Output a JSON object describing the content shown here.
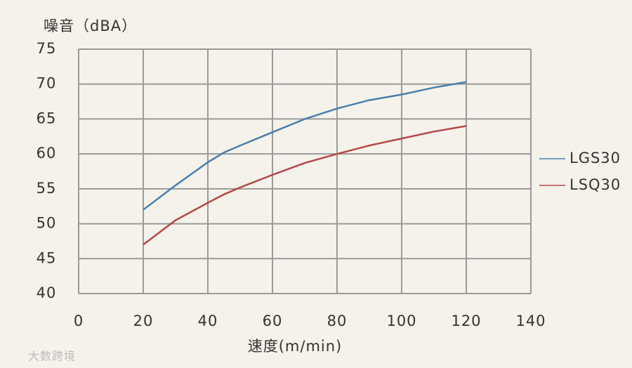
{
  "chart_data": {
    "type": "line",
    "y_label": "噪音（dBA）",
    "x_label": "速度(m/min)",
    "watermark": "大数跨境",
    "x": [
      20,
      30,
      40,
      45,
      50,
      60,
      70,
      80,
      90,
      100,
      110,
      120
    ],
    "series": [
      {
        "name": "LGS30",
        "color": "#4a7fae",
        "values": [
          52,
          55.5,
          58.8,
          60.2,
          61.2,
          63.1,
          65,
          66.5,
          67.7,
          68.5,
          69.5,
          70.3
        ]
      },
      {
        "name": "LSQ30",
        "color": "#b5474a",
        "values": [
          47,
          50.5,
          53,
          54.2,
          55.2,
          57,
          58.7,
          60,
          61.2,
          62.2,
          63.2,
          64
        ]
      }
    ],
    "xlim": [
      0,
      140
    ],
    "xticks": [
      0,
      20,
      40,
      60,
      80,
      100,
      120,
      140
    ],
    "ylim": [
      40,
      75
    ],
    "yticks": [
      40,
      45,
      50,
      55,
      60,
      65,
      70,
      75
    ],
    "grid": true,
    "legend": "right"
  }
}
